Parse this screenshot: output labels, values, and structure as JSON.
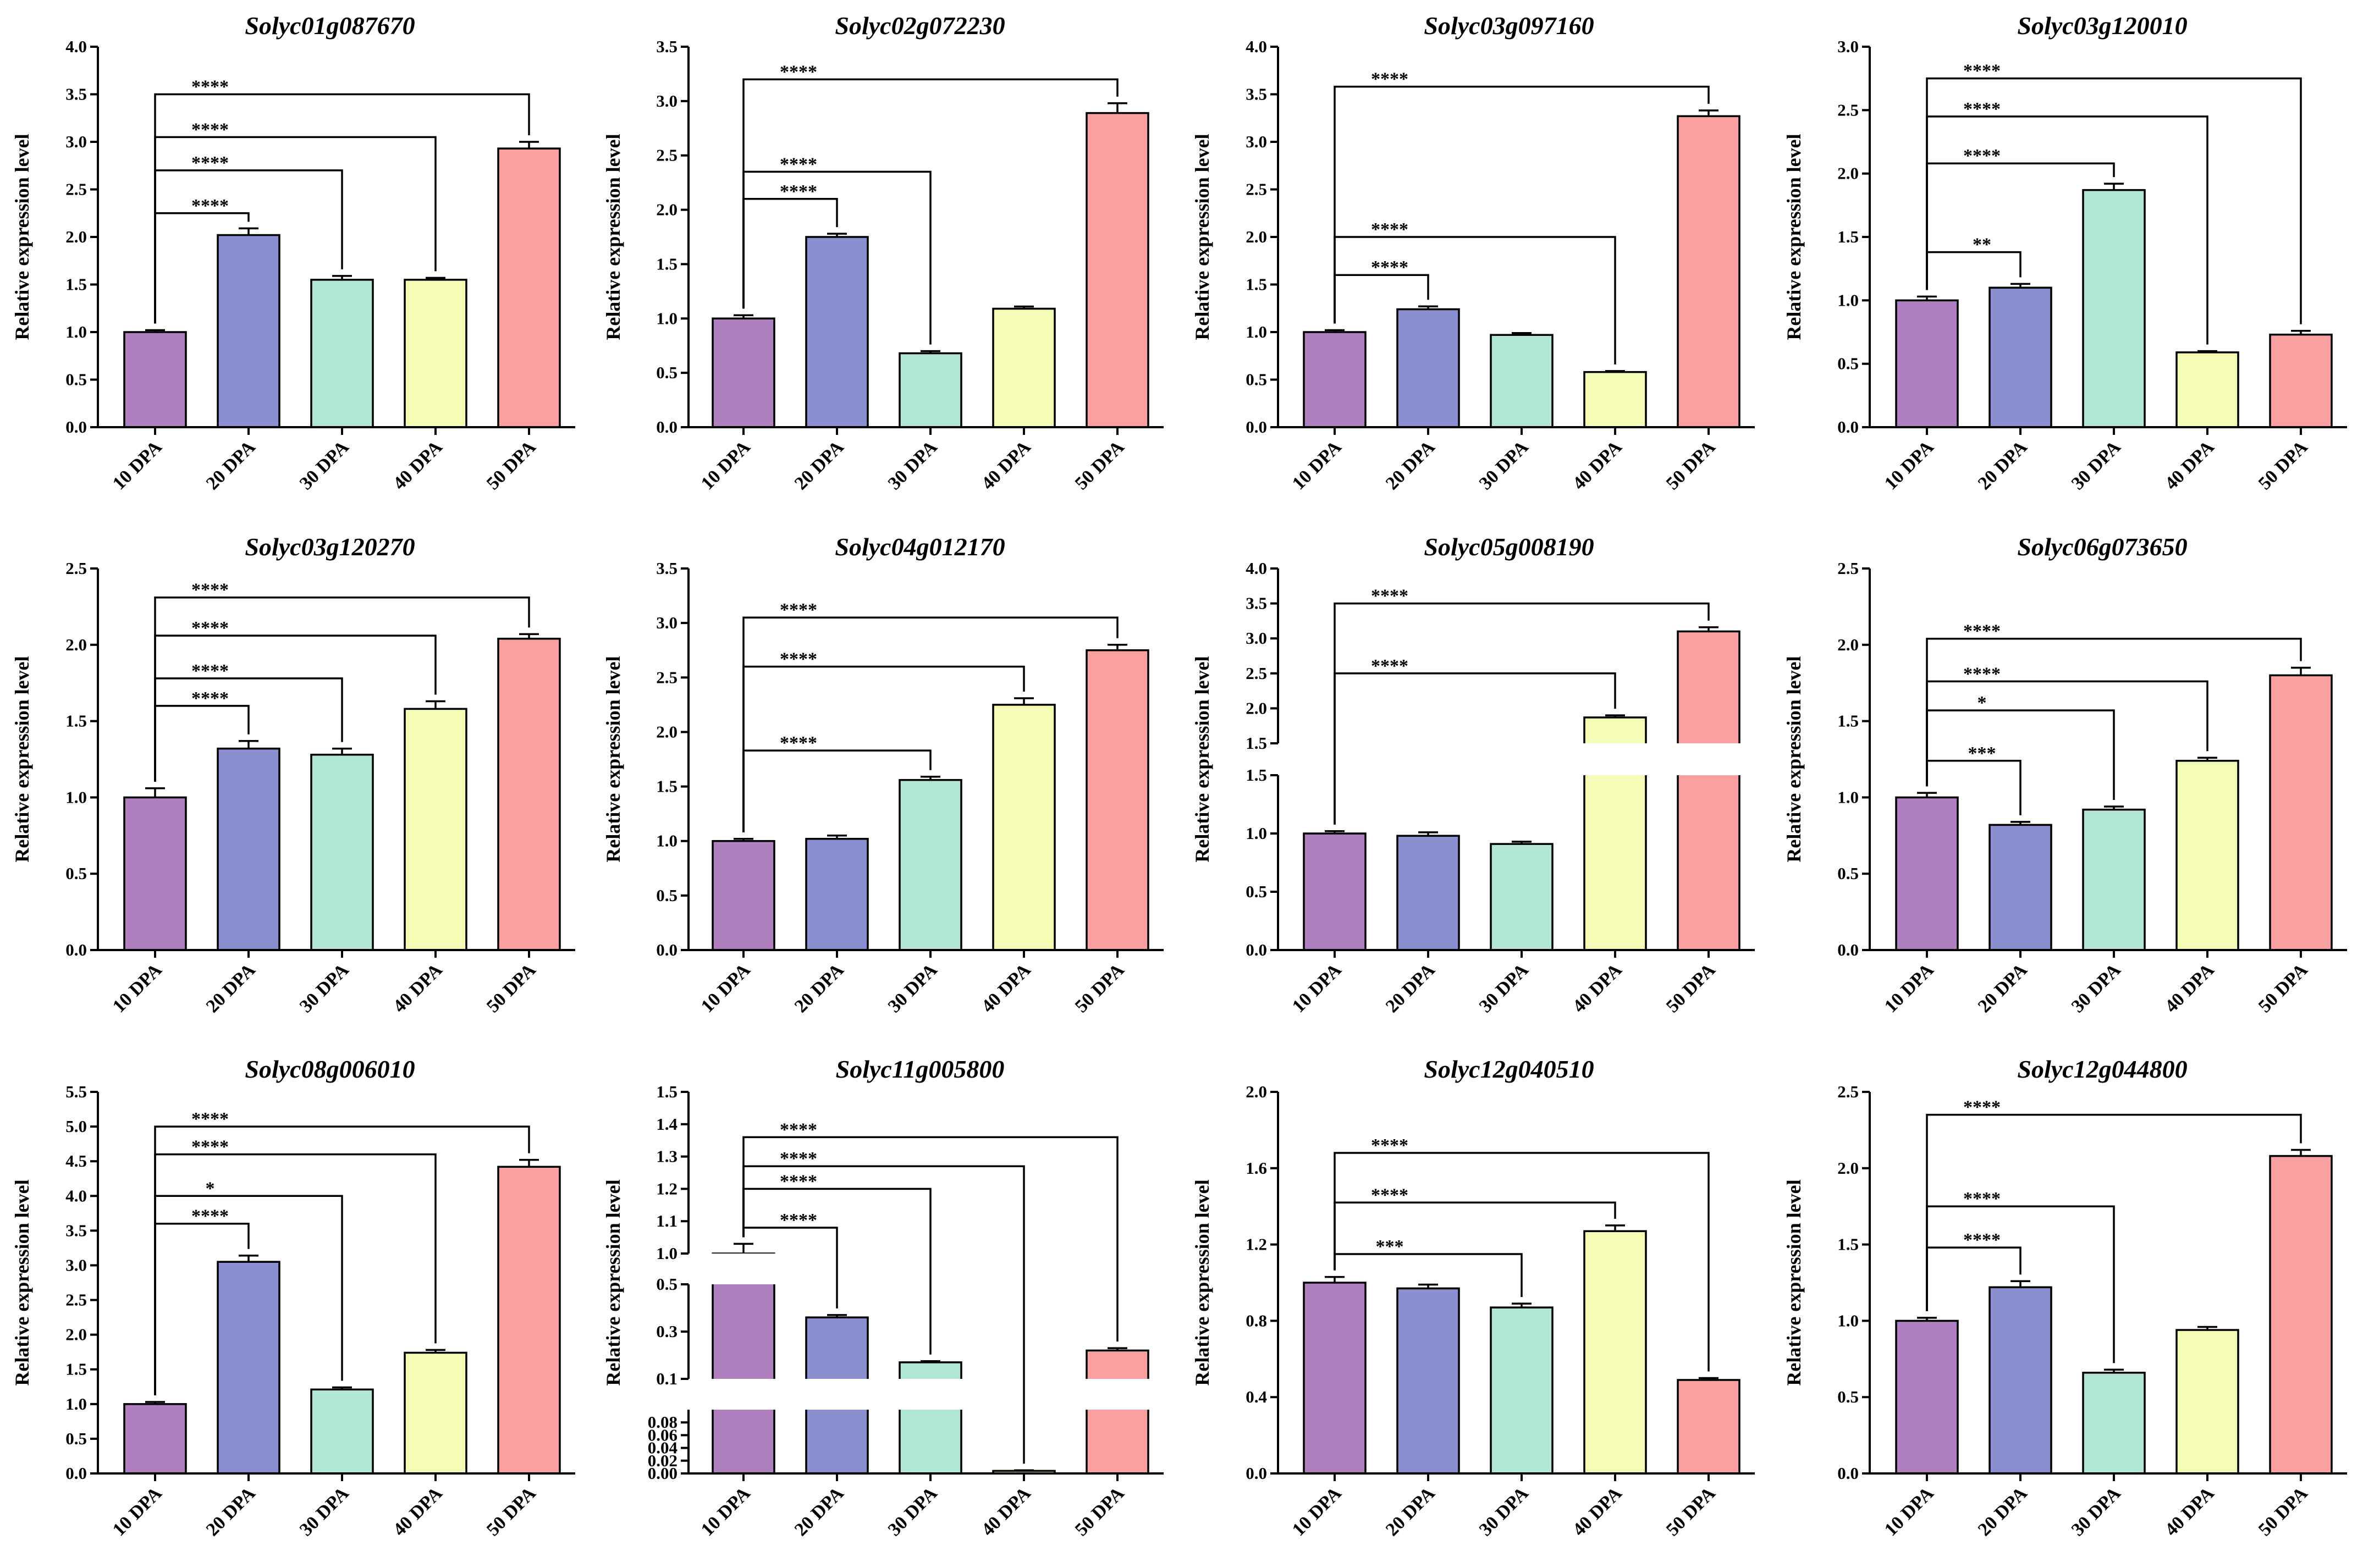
{
  "categories": [
    "10 DPA",
    "20 DPA",
    "30 DPA",
    "40 DPA",
    "50 DPA"
  ],
  "colors": [
    "#b07fc0",
    "#8a8fcf",
    "#b2e7d4",
    "#f4fcb6",
    "#fba0a0"
  ],
  "ylabel": "Relative expression level",
  "chart_data": [
    {
      "type": "bar",
      "title": "Solyc01g087670",
      "categories": [
        "10 DPA",
        "20 DPA",
        "30 DPA",
        "40 DPA",
        "50 DPA"
      ],
      "values": [
        1.0,
        2.02,
        1.55,
        1.55,
        2.93
      ],
      "errors": [
        0.02,
        0.07,
        0.04,
        0.02,
        0.07
      ],
      "ylabel": "Relative expression level",
      "ylim": [
        0,
        4.0
      ],
      "ticks": [
        "0.0",
        "0.5",
        "1.0",
        "1.5",
        "2.0",
        "2.5",
        "3.0",
        "3.5",
        "4.0"
      ],
      "significance": [
        {
          "from": "10 DPA",
          "to": "20 DPA",
          "label": "****",
          "level": 2.25
        },
        {
          "from": "10 DPA",
          "to": "30 DPA",
          "label": "****",
          "level": 2.7
        },
        {
          "from": "10 DPA",
          "to": "40 DPA",
          "label": "****",
          "level": 3.05
        },
        {
          "from": "10 DPA",
          "to": "50 DPA",
          "label": "****",
          "level": 3.5
        }
      ]
    },
    {
      "type": "bar",
      "title": "Solyc02g072230",
      "categories": [
        "10 DPA",
        "20 DPA",
        "30 DPA",
        "40 DPA",
        "50 DPA"
      ],
      "values": [
        1.0,
        1.75,
        0.68,
        1.09,
        2.89
      ],
      "errors": [
        0.03,
        0.03,
        0.02,
        0.02,
        0.09
      ],
      "ylabel": "Relative expression level",
      "ylim": [
        0,
        3.5
      ],
      "ticks": [
        "0.0",
        "0.5",
        "1.0",
        "1.5",
        "2.0",
        "2.5",
        "3.0",
        "3.5"
      ],
      "significance": [
        {
          "from": "10 DPA",
          "to": "20 DPA",
          "label": "****",
          "level": 2.1
        },
        {
          "from": "10 DPA",
          "to": "30 DPA",
          "label": "****",
          "level": 2.35
        },
        {
          "from": "10 DPA",
          "to": "50 DPA",
          "label": "****",
          "level": 3.2
        }
      ]
    },
    {
      "type": "bar",
      "title": "Solyc03g097160",
      "categories": [
        "10 DPA",
        "20 DPA",
        "30 DPA",
        "40 DPA",
        "50 DPA"
      ],
      "values": [
        1.0,
        1.24,
        0.97,
        0.58,
        3.27
      ],
      "errors": [
        0.02,
        0.03,
        0.02,
        0.01,
        0.06
      ],
      "ylabel": "Relative expression level",
      "ylim": [
        0,
        4.0
      ],
      "ticks": [
        "0.0",
        "0.5",
        "1.0",
        "1.5",
        "2.0",
        "2.5",
        "3.0",
        "3.5",
        "4.0"
      ],
      "significance": [
        {
          "from": "10 DPA",
          "to": "20 DPA",
          "label": "****",
          "level": 1.6
        },
        {
          "from": "10 DPA",
          "to": "40 DPA",
          "label": "****",
          "level": 2.0
        },
        {
          "from": "10 DPA",
          "to": "50 DPA",
          "label": "****",
          "level": 3.58
        }
      ]
    },
    {
      "type": "bar",
      "title": "Solyc03g120010",
      "categories": [
        "10 DPA",
        "20 DPA",
        "30 DPA",
        "40 DPA",
        "50 DPA"
      ],
      "values": [
        1.0,
        1.1,
        1.87,
        0.59,
        0.73
      ],
      "errors": [
        0.03,
        0.03,
        0.05,
        0.01,
        0.03
      ],
      "ylabel": "Relative expression level",
      "ylim": [
        0,
        3.0
      ],
      "ticks": [
        "0.0",
        "0.5",
        "1.0",
        "1.5",
        "2.0",
        "2.5",
        "3.0"
      ],
      "significance": [
        {
          "from": "10 DPA",
          "to": "20 DPA",
          "label": "**",
          "level": 1.38
        },
        {
          "from": "10 DPA",
          "to": "30 DPA",
          "label": "****",
          "level": 2.08
        },
        {
          "from": "10 DPA",
          "to": "40 DPA",
          "label": "****",
          "level": 2.45
        },
        {
          "from": "10 DPA",
          "to": "50 DPA",
          "label": "****",
          "level": 2.75
        }
      ]
    },
    {
      "type": "bar",
      "title": "Solyc03g120270",
      "categories": [
        "10 DPA",
        "20 DPA",
        "30 DPA",
        "40 DPA",
        "50 DPA"
      ],
      "values": [
        1.0,
        1.32,
        1.28,
        1.58,
        2.04
      ],
      "errors": [
        0.06,
        0.05,
        0.04,
        0.05,
        0.03
      ],
      "ylabel": "Relative expression level",
      "ylim": [
        0,
        2.5
      ],
      "ticks": [
        "0.0",
        "0.5",
        "1.0",
        "1.5",
        "2.0",
        "2.5"
      ],
      "significance": [
        {
          "from": "10 DPA",
          "to": "20 DPA",
          "label": "****",
          "level": 1.6
        },
        {
          "from": "10 DPA",
          "to": "30 DPA",
          "label": "****",
          "level": 1.78
        },
        {
          "from": "10 DPA",
          "to": "40 DPA",
          "label": "****",
          "level": 2.06
        },
        {
          "from": "10 DPA",
          "to": "50 DPA",
          "label": "****",
          "level": 2.31
        }
      ]
    },
    {
      "type": "bar",
      "title": "Solyc04g012170",
      "categories": [
        "10 DPA",
        "20 DPA",
        "30 DPA",
        "40 DPA",
        "50 DPA"
      ],
      "values": [
        1.0,
        1.02,
        1.56,
        2.25,
        2.75
      ],
      "errors": [
        0.02,
        0.03,
        0.03,
        0.06,
        0.05
      ],
      "ylabel": "Relative expression level",
      "ylim": [
        0,
        3.5
      ],
      "ticks": [
        "0.0",
        "0.5",
        "1.0",
        "1.5",
        "2.0",
        "2.5",
        "3.0",
        "3.5"
      ],
      "significance": [
        {
          "from": "10 DPA",
          "to": "30 DPA",
          "label": "****",
          "level": 1.83
        },
        {
          "from": "10 DPA",
          "to": "40 DPA",
          "label": "****",
          "level": 2.6
        },
        {
          "from": "10 DPA",
          "to": "50 DPA",
          "label": "****",
          "level": 3.05
        }
      ]
    },
    {
      "type": "bar",
      "title": "Solyc05g008190",
      "categories": [
        "10 DPA",
        "20 DPA",
        "30 DPA",
        "40 DPA",
        "50 DPA"
      ],
      "values": [
        1.0,
        0.98,
        0.91,
        1.87,
        3.1
      ],
      "errors": [
        0.02,
        0.03,
        0.02,
        0.03,
        0.06
      ],
      "ylabel": "Relative expression level",
      "ylim": [
        0,
        4.0
      ],
      "axis_break": [
        1.5,
        1.5
      ],
      "ticks": [
        "0.0",
        "0.5",
        "1.0",
        "1.5",
        "1.5",
        "2.0",
        "2.5",
        "3.0",
        "3.5",
        "4.0"
      ],
      "significance": [
        {
          "from": "10 DPA",
          "to": "40 DPA",
          "label": "****",
          "level": 2.5
        },
        {
          "from": "10 DPA",
          "to": "50 DPA",
          "label": "****",
          "level": 3.5
        }
      ]
    },
    {
      "type": "bar",
      "title": "Solyc06g073650",
      "categories": [
        "10 DPA",
        "20 DPA",
        "30 DPA",
        "40 DPA",
        "50 DPA"
      ],
      "values": [
        1.0,
        0.82,
        0.92,
        1.24,
        1.8
      ],
      "errors": [
        0.03,
        0.02,
        0.02,
        0.02,
        0.05
      ],
      "ylabel": "Relative expression level",
      "ylim": [
        0,
        2.5
      ],
      "ticks": [
        "0.0",
        "0.5",
        "1.0",
        "1.5",
        "2.0",
        "2.5"
      ],
      "significance": [
        {
          "from": "10 DPA",
          "to": "20 DPA",
          "label": "***",
          "level": 1.24
        },
        {
          "from": "10 DPA",
          "to": "30 DPA",
          "label": "*",
          "level": 1.57
        },
        {
          "from": "10 DPA",
          "to": "40 DPA",
          "label": "****",
          "level": 1.76
        },
        {
          "from": "10 DPA",
          "to": "50 DPA",
          "label": "****",
          "level": 2.04
        }
      ]
    },
    {
      "type": "bar",
      "title": "Solyc08g006010",
      "categories": [
        "10 DPA",
        "20 DPA",
        "30 DPA",
        "40 DPA",
        "50 DPA"
      ],
      "values": [
        1.0,
        3.05,
        1.21,
        1.74,
        4.42
      ],
      "errors": [
        0.03,
        0.09,
        0.03,
        0.04,
        0.1
      ],
      "ylabel": "Relative expression level",
      "ylim": [
        0,
        5.5
      ],
      "ticks": [
        "0.0",
        "0.5",
        "1.0",
        "1.5",
        "2.0",
        "2.5",
        "3.0",
        "3.5",
        "4.0",
        "4.5",
        "5.0",
        "5.5"
      ],
      "significance": [
        {
          "from": "10 DPA",
          "to": "20 DPA",
          "label": "****",
          "level": 3.6
        },
        {
          "from": "10 DPA",
          "to": "30 DPA",
          "label": "*",
          "level": 4.0
        },
        {
          "from": "10 DPA",
          "to": "40 DPA",
          "label": "****",
          "level": 4.6
        },
        {
          "from": "10 DPA",
          "to": "50 DPA",
          "label": "****",
          "level": 5.0
        }
      ]
    },
    {
      "type": "bar",
      "title": "Solyc11g005800",
      "categories": [
        "10 DPA",
        "20 DPA",
        "30 DPA",
        "40 DPA",
        "50 DPA"
      ],
      "values": [
        1.0,
        0.36,
        0.17,
        0.004,
        0.22
      ],
      "errors": [
        0.03,
        0.01,
        0.005,
        0.001,
        0.01
      ],
      "ylabel": "Relative expression level",
      "axis_breaks": [
        [
          0.1,
          0.1
        ],
        [
          0.5,
          1.0
        ]
      ],
      "ticks": [
        "0.00",
        "0.02",
        "0.04",
        "0.06",
        "0.08",
        "0.1",
        "0.3",
        "0.5",
        "1.0",
        "1.1",
        "1.2",
        "1.3",
        "1.4",
        "1.5"
      ],
      "significance": [
        {
          "from": "10 DPA",
          "to": "20 DPA",
          "label": "****",
          "level": 1.08
        },
        {
          "from": "10 DPA",
          "to": "30 DPA",
          "label": "****",
          "level": 1.2
        },
        {
          "from": "10 DPA",
          "to": "40 DPA",
          "label": "****",
          "level": 1.27
        },
        {
          "from": "10 DPA",
          "to": "50 DPA",
          "label": "****",
          "level": 1.36
        }
      ]
    },
    {
      "type": "bar",
      "title": "Solyc12g040510",
      "categories": [
        "10 DPA",
        "20 DPA",
        "30 DPA",
        "40 DPA",
        "50 DPA"
      ],
      "values": [
        1.0,
        0.97,
        0.87,
        1.27,
        0.49
      ],
      "errors": [
        0.03,
        0.02,
        0.02,
        0.03,
        0.01
      ],
      "ylabel": "Relative expression level",
      "ylim": [
        0,
        2.0
      ],
      "ticks": [
        "0.0",
        "0.4",
        "0.8",
        "1.2",
        "1.6",
        "2.0"
      ],
      "significance": [
        {
          "from": "10 DPA",
          "to": "30 DPA",
          "label": "***",
          "level": 1.15
        },
        {
          "from": "10 DPA",
          "to": "40 DPA",
          "label": "****",
          "level": 1.42
        },
        {
          "from": "10 DPA",
          "to": "50 DPA",
          "label": "****",
          "level": 1.68
        }
      ]
    },
    {
      "type": "bar",
      "title": "Solyc12g044800",
      "categories": [
        "10 DPA",
        "20 DPA",
        "30 DPA",
        "40 DPA",
        "50 DPA"
      ],
      "values": [
        1.0,
        1.22,
        0.66,
        0.94,
        2.08
      ],
      "errors": [
        0.02,
        0.04,
        0.02,
        0.02,
        0.04
      ],
      "ylabel": "Relative expression level",
      "ylim": [
        0,
        2.5
      ],
      "ticks": [
        "0.0",
        "0.5",
        "1.0",
        "1.5",
        "2.0",
        "2.5"
      ],
      "significance": [
        {
          "from": "10 DPA",
          "to": "20 DPA",
          "label": "****",
          "level": 1.48
        },
        {
          "from": "10 DPA",
          "to": "30 DPA",
          "label": "****",
          "level": 1.75
        },
        {
          "from": "10 DPA",
          "to": "50 DPA",
          "label": "****",
          "level": 2.35
        }
      ]
    }
  ]
}
